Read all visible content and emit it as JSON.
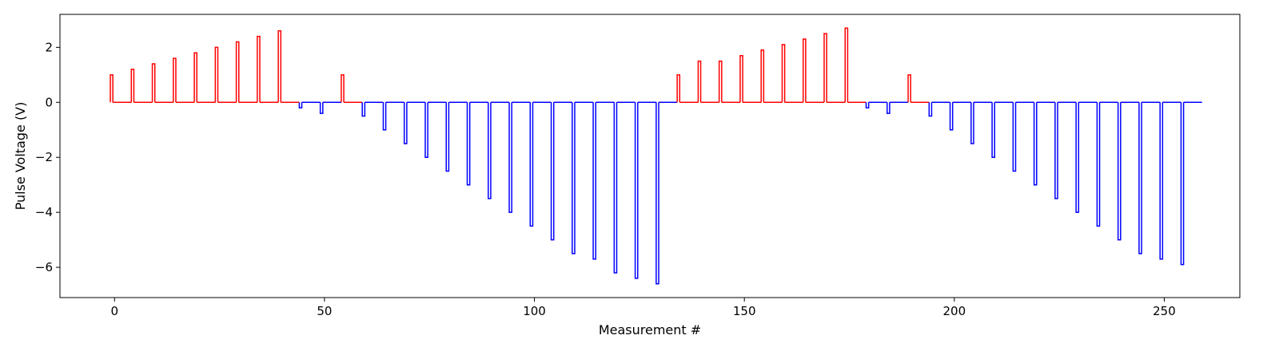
{
  "chart_data": {
    "type": "line",
    "title": "",
    "xlabel": "Measurement #",
    "ylabel": "Pulse Voltage (V)",
    "xlim": [
      -13,
      268
    ],
    "ylim": [
      -7.1,
      3.2
    ],
    "xticks": [
      0,
      50,
      100,
      150,
      200,
      250
    ],
    "yticks": [
      2,
      0,
      -2,
      -4,
      -6
    ],
    "ytick_labels": [
      "2",
      "0",
      "−2",
      "−4",
      "−6"
    ],
    "grid": false,
    "legend": "none",
    "colors": {
      "positive": "#ff0000",
      "negative": "#0000ff"
    },
    "baseline": 0,
    "x_end": 259,
    "pulse_width": 0.6,
    "pulses": [
      {
        "x": -1,
        "v": 1.0
      },
      {
        "x": 4,
        "v": 1.2
      },
      {
        "x": 9,
        "v": 1.4
      },
      {
        "x": 14,
        "v": 1.6
      },
      {
        "x": 19,
        "v": 1.8
      },
      {
        "x": 24,
        "v": 2.0
      },
      {
        "x": 29,
        "v": 2.2
      },
      {
        "x": 34,
        "v": 2.4
      },
      {
        "x": 39,
        "v": 2.6
      },
      {
        "x": 44,
        "v": -0.2
      },
      {
        "x": 49,
        "v": -0.4
      },
      {
        "x": 54,
        "v": 1.0
      },
      {
        "x": 59,
        "v": -0.5
      },
      {
        "x": 64,
        "v": -1.0
      },
      {
        "x": 69,
        "v": -1.5
      },
      {
        "x": 74,
        "v": -2.0
      },
      {
        "x": 79,
        "v": -2.5
      },
      {
        "x": 84,
        "v": -3.0
      },
      {
        "x": 89,
        "v": -3.5
      },
      {
        "x": 94,
        "v": -4.0
      },
      {
        "x": 99,
        "v": -4.5
      },
      {
        "x": 104,
        "v": -5.0
      },
      {
        "x": 109,
        "v": -5.5
      },
      {
        "x": 114,
        "v": -5.7
      },
      {
        "x": 119,
        "v": -6.2
      },
      {
        "x": 124,
        "v": -6.4
      },
      {
        "x": 129,
        "v": -6.6
      },
      {
        "x": 134,
        "v": 1.0
      },
      {
        "x": 139,
        "v": 1.5
      },
      {
        "x": 144,
        "v": 1.5
      },
      {
        "x": 149,
        "v": 1.7
      },
      {
        "x": 154,
        "v": 1.9
      },
      {
        "x": 159,
        "v": 2.1
      },
      {
        "x": 164,
        "v": 2.3
      },
      {
        "x": 169,
        "v": 2.5
      },
      {
        "x": 174,
        "v": 2.7
      },
      {
        "x": 179,
        "v": -0.2
      },
      {
        "x": 184,
        "v": -0.4
      },
      {
        "x": 189,
        "v": 1.0
      },
      {
        "x": 194,
        "v": -0.5
      },
      {
        "x": 199,
        "v": -1.0
      },
      {
        "x": 204,
        "v": -1.5
      },
      {
        "x": 209,
        "v": -2.0
      },
      {
        "x": 214,
        "v": -2.5
      },
      {
        "x": 219,
        "v": -3.0
      },
      {
        "x": 224,
        "v": -3.5
      },
      {
        "x": 229,
        "v": -4.0
      },
      {
        "x": 234,
        "v": -4.5
      },
      {
        "x": 239,
        "v": -5.0
      },
      {
        "x": 244,
        "v": -5.5
      },
      {
        "x": 249,
        "v": -5.7
      },
      {
        "x": 254,
        "v": -5.9
      }
    ]
  }
}
